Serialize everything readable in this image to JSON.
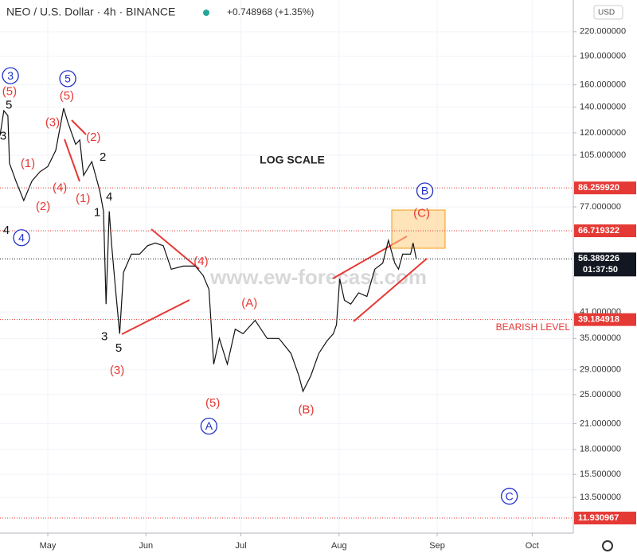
{
  "chart_data": {
    "type": "line",
    "title": "NEO / U.S. Dollar · 4h · BINANCE",
    "subtitle": "+0.748968 (+1.35%)",
    "currency": "USD",
    "scale_note": "LOG SCALE",
    "watermark": "www.ew-forecast.com",
    "log_scale": true,
    "ylim": [
      10.9,
      266
    ],
    "yticks": [
      {
        "value": 220,
        "label": "220.000000"
      },
      {
        "value": 190,
        "label": "190.000000"
      },
      {
        "value": 160,
        "label": "160.000000"
      },
      {
        "value": 140,
        "label": "140.000000"
      },
      {
        "value": 120,
        "label": "120.000000"
      },
      {
        "value": 105,
        "label": "105.000000"
      },
      {
        "value": 77,
        "label": "77.000000"
      },
      {
        "value": 41,
        "label": "41.000000"
      },
      {
        "value": 35,
        "label": "35.000000"
      },
      {
        "value": 29,
        "label": "29.000000"
      },
      {
        "value": 25,
        "label": "25.000000"
      },
      {
        "value": 21,
        "label": "21.000000"
      },
      {
        "value": 18,
        "label": "18.000000"
      },
      {
        "value": 15.5,
        "label": "15.500000"
      },
      {
        "value": 13.5,
        "label": "13.500000"
      }
    ],
    "xlim": [
      -15.1,
      166
    ],
    "xticks": [
      {
        "value": 0,
        "label": "May"
      },
      {
        "value": 31,
        "label": "Jun"
      },
      {
        "value": 61,
        "label": "Jul"
      },
      {
        "value": 92,
        "label": "Aug"
      },
      {
        "value": 123,
        "label": "Sep"
      },
      {
        "value": 153,
        "label": "Oct"
      }
    ],
    "series": [
      {
        "name": "NEO/USD",
        "color": "#111111",
        "x": [
          -15.1,
          -13.9,
          -12.6,
          -12.1,
          -10.1,
          -7.6,
          -5.0,
          -2.5,
          0,
          2.5,
          5.0,
          6.3,
          8.8,
          10.1,
          11.3,
          13.9,
          16.4,
          17.6,
          18.4,
          19.4,
          20.2,
          21.4,
          22.7,
          23.9,
          26.4,
          29.0,
          31.5,
          34.0,
          36.5,
          39.0,
          42.8,
          46.6,
          49.1,
          50.9,
          52.4,
          54.2,
          56.7,
          59.2,
          61.7,
          65.5,
          69.3,
          73.0,
          76.8,
          79.3,
          80.6,
          83.1,
          85.6,
          88.2,
          90.2,
          91.2,
          92.2,
          93.7,
          95.7,
          98.2,
          100.8,
          103.3,
          105.8,
          107.6,
          109.6,
          110.8,
          112.1,
          114.6,
          115.4,
          116.4
        ],
        "values": [
          118,
          137,
          133,
          100,
          90,
          80,
          90,
          95,
          98,
          108,
          139,
          128,
          112,
          115,
          93,
          101,
          85,
          75,
          43,
          75,
          61,
          47,
          36,
          52,
          58,
          58,
          61,
          62,
          61,
          53,
          54,
          54,
          51,
          47,
          30,
          35,
          30,
          37,
          36,
          39,
          35,
          35,
          32,
          28,
          25.5,
          28,
          32,
          34.5,
          36,
          38,
          50,
          44,
          43,
          46,
          45,
          53,
          55,
          63,
          55,
          53,
          58,
          58,
          62,
          56.4
        ]
      }
    ],
    "levels": [
      {
        "value": 86.25992,
        "label": "86.259920",
        "color": "#e53935"
      },
      {
        "value": 66.719322,
        "label": "66.719322",
        "color": "#e53935"
      },
      {
        "value": 56.389226,
        "label": "56.389226",
        "color": "#131722",
        "timer": "01:37:50"
      },
      {
        "value": 39.184918,
        "label": "39.184918",
        "color": "#e53935",
        "note": "BEARISH LEVEL"
      },
      {
        "value": 11.930967,
        "label": "11.930967",
        "color": "#e53935"
      }
    ],
    "annotations": [
      {
        "text": "3",
        "x": -11.8,
        "y": 169,
        "color": "#1f2fc8",
        "circle": true
      },
      {
        "text": "4",
        "x": -8.3,
        "y": 64,
        "color": "#1f2fc8",
        "circle": true
      },
      {
        "text": "5",
        "x": 6.3,
        "y": 166,
        "color": "#1f2fc8",
        "circle": true
      },
      {
        "text": "A",
        "x": 50.9,
        "y": 20.7,
        "color": "#1f2fc8",
        "circle": true
      },
      {
        "text": "B",
        "x": 119.1,
        "y": 84.7,
        "color": "#1f2fc8",
        "circle": true
      },
      {
        "text": "C",
        "x": 145.8,
        "y": 13.6,
        "color": "#1f2fc8",
        "circle": true
      },
      {
        "text": "(5)",
        "x": -12.1,
        "y": 154,
        "color": "#e53935"
      },
      {
        "text": "(5)",
        "x": 6.0,
        "y": 150,
        "color": "#e53935"
      },
      {
        "text": "(3)",
        "x": 1.5,
        "y": 128,
        "color": "#e53935"
      },
      {
        "text": "(2)",
        "x": 14.4,
        "y": 117,
        "color": "#e53935"
      },
      {
        "text": "(1)",
        "x": -6.3,
        "y": 100,
        "color": "#e53935"
      },
      {
        "text": "(4)",
        "x": 3.8,
        "y": 86.6,
        "color": "#e53935"
      },
      {
        "text": "(2)",
        "x": -1.5,
        "y": 77.3,
        "color": "#e53935"
      },
      {
        "text": "(1)",
        "x": 11.1,
        "y": 81.1,
        "color": "#e53935"
      },
      {
        "text": "(4)",
        "x": 48.4,
        "y": 55.6,
        "color": "#e53935"
      },
      {
        "text": "(A)",
        "x": 63.7,
        "y": 43.3,
        "color": "#e53935"
      },
      {
        "text": "(3)",
        "x": 21.9,
        "y": 29.0,
        "color": "#e53935"
      },
      {
        "text": "(5)",
        "x": 52.1,
        "y": 23.8,
        "color": "#e53935"
      },
      {
        "text": "(B)",
        "x": 81.6,
        "y": 22.9,
        "color": "#e53935"
      },
      {
        "text": "(C)",
        "x": 118.1,
        "y": 74.2,
        "color": "#e53935"
      },
      {
        "text": "5",
        "x": -12.3,
        "y": 142,
        "color": "#111111"
      },
      {
        "text": "3",
        "x": -14.1,
        "y": 118,
        "color": "#111111"
      },
      {
        "text": "2",
        "x": 17.4,
        "y": 104,
        "color": "#111111"
      },
      {
        "text": "4",
        "x": 19.4,
        "y": 81.9,
        "color": "#111111"
      },
      {
        "text": "1",
        "x": 15.6,
        "y": 74.6,
        "color": "#111111"
      },
      {
        "text": "4",
        "x": -13.1,
        "y": 67.1,
        "color": "#111111"
      },
      {
        "text": "3",
        "x": 17.9,
        "y": 35.5,
        "color": "#111111"
      },
      {
        "text": "5",
        "x": 22.4,
        "y": 33.1,
        "color": "#111111"
      }
    ]
  }
}
